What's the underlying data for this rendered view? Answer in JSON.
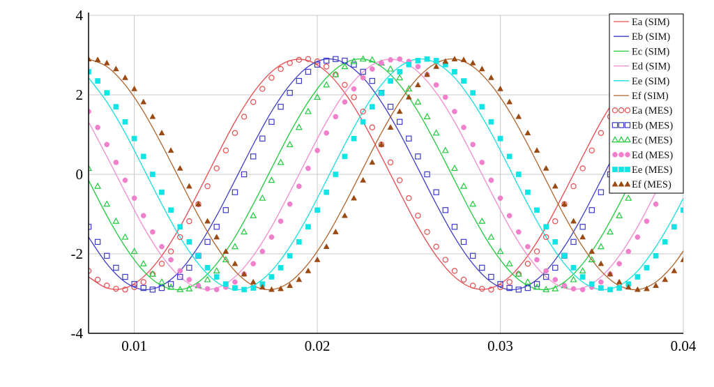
{
  "chart_data": {
    "type": "line",
    "title": "",
    "xlabel": "",
    "ylabel": "",
    "xlim": [
      0.0075,
      0.04
    ],
    "ylim": [
      -4,
      4
    ],
    "grid": true,
    "legend_position": "top-right",
    "xticks": [
      0.01,
      0.02,
      0.03,
      0.04
    ],
    "xtick_labels": [
      "0.01",
      "0.02",
      "0.03",
      "0.04"
    ],
    "yticks": [
      4,
      2,
      0,
      -2,
      -4
    ],
    "ytick_labels": [
      "4",
      "2",
      "0",
      "-2",
      "-4"
    ],
    "x_sim": [
      0.0075,
      0.0085,
      0.0095,
      0.0105,
      0.0115,
      0.0125,
      0.0135,
      0.0145,
      0.0155,
      0.0165,
      0.0175,
      0.0185,
      0.0195,
      0.0205,
      0.0215,
      0.0225,
      0.0235,
      0.0245,
      0.0255,
      0.0265,
      0.0275,
      0.0285,
      0.0295,
      0.0305,
      0.0315,
      0.0325,
      0.0335,
      0.0345,
      0.0355,
      0.0365,
      0.0375,
      0.0385,
      0.0395,
      0.0405
    ],
    "x_mes": [
      0.0075,
      0.008,
      0.0085,
      0.009,
      0.0095,
      0.01,
      0.0105,
      0.011,
      0.0115,
      0.012,
      0.0125,
      0.013,
      0.0135,
      0.014,
      0.0145,
      0.015,
      0.0155,
      0.016,
      0.0165,
      0.017,
      0.0175,
      0.018,
      0.0185,
      0.019,
      0.0195,
      0.02,
      0.0205,
      0.021,
      0.0215,
      0.022,
      0.0225,
      0.023,
      0.0235,
      0.024,
      0.0245,
      0.025,
      0.0255,
      0.026,
      0.0265,
      0.027,
      0.0275,
      0.028,
      0.0285,
      0.029,
      0.0295,
      0.03,
      0.0305,
      0.031,
      0.0315,
      0.032,
      0.0325,
      0.033,
      0.0335,
      0.034,
      0.0345,
      0.035,
      0.0355,
      0.036,
      0.0365,
      0.037,
      0.0375,
      0.038,
      0.0385,
      0.039,
      0.0395,
      0.04
    ],
    "series": [
      {
        "name": "Ea (SIM)",
        "kind": "line",
        "color": "#e84a4e",
        "values": [
          -2.58,
          -2.86,
          -2.86,
          -2.58,
          -2.05,
          -1.32,
          -0.45,
          0.45,
          1.32,
          2.05,
          2.58,
          2.86,
          2.86,
          2.58,
          2.05,
          1.32,
          0.45,
          -0.45,
          -1.32,
          -2.05,
          -2.58,
          -2.86,
          -2.86,
          -2.58,
          -2.05,
          -1.32,
          -0.45,
          0.45,
          1.32,
          2.05,
          2.58,
          2.86,
          2.86,
          2.58
        ]
      },
      {
        "name": "Eb (SIM)",
        "kind": "line",
        "color": "#3b3bc8",
        "values": [
          -1.58,
          -2.25,
          -2.71,
          -2.9,
          -2.8,
          -2.43,
          -1.82,
          -1.04,
          -0.15,
          0.75,
          1.58,
          2.25,
          2.71,
          2.9,
          2.8,
          2.43,
          1.82,
          1.04,
          0.15,
          -0.75,
          -1.58,
          -2.25,
          -2.71,
          -2.9,
          -2.8,
          -2.43,
          -1.82,
          -1.04,
          -0.15,
          0.75,
          1.58,
          2.25,
          2.71,
          2.9
        ]
      },
      {
        "name": "Ec (SIM)",
        "kind": "line",
        "color": "#1fca3c",
        "values": [
          -0.15,
          -1.04,
          -1.82,
          -2.43,
          -2.8,
          -2.9,
          -2.71,
          -2.25,
          -1.58,
          -0.75,
          0.15,
          1.04,
          1.82,
          2.43,
          2.8,
          2.9,
          2.71,
          2.25,
          1.58,
          0.75,
          -0.15,
          -1.04,
          -1.82,
          -2.43,
          -2.8,
          -2.9,
          -2.71,
          -2.25,
          -1.58,
          -0.75,
          0.15,
          1.04,
          1.82,
          2.43
        ]
      },
      {
        "name": "Ed (SIM)",
        "kind": "line",
        "color": "#f08cd0",
        "values": [
          1.32,
          0.45,
          -0.45,
          -1.32,
          -2.05,
          -2.58,
          -2.86,
          -2.86,
          -2.58,
          -2.05,
          -1.32,
          -0.45,
          0.45,
          1.32,
          2.05,
          2.58,
          2.86,
          2.86,
          2.58,
          2.05,
          1.32,
          0.45,
          -0.45,
          -1.32,
          -2.05,
          -2.58,
          -2.86,
          -2.86,
          -2.58,
          -2.05,
          -1.32,
          -0.45,
          0.45,
          1.32
        ]
      },
      {
        "name": "Ee (SIM)",
        "kind": "line",
        "color": "#16dede",
        "values": [
          2.43,
          1.82,
          1.04,
          0.15,
          -0.75,
          -1.58,
          -2.25,
          -2.71,
          -2.9,
          -2.8,
          -2.43,
          -1.82,
          -1.04,
          -0.15,
          0.75,
          1.58,
          2.25,
          2.71,
          2.9,
          2.8,
          2.43,
          1.82,
          1.04,
          0.15,
          -0.75,
          -1.58,
          -2.25,
          -2.71,
          -2.9,
          -2.8,
          -2.43,
          -1.82,
          -1.04,
          -0.15
        ]
      },
      {
        "name": "Ef (SIM)",
        "kind": "line",
        "color": "#b0622a",
        "values": [
          2.9,
          2.71,
          2.25,
          1.58,
          0.75,
          -0.15,
          -1.04,
          -1.82,
          -2.43,
          -2.8,
          -2.9,
          -2.71,
          -2.25,
          -1.58,
          -0.75,
          0.15,
          1.04,
          1.82,
          2.43,
          2.8,
          2.9,
          2.71,
          2.25,
          1.58,
          0.75,
          -0.15,
          -1.04,
          -1.82,
          -2.43,
          -2.8,
          -2.9,
          -2.71,
          -2.25,
          -1.58
        ]
      },
      {
        "name": "Ea (MES)",
        "kind": "marker",
        "marker": "circle-open",
        "color": "#e84a4e",
        "values": [
          -2.43,
          -2.65,
          -2.8,
          -2.88,
          -2.9,
          -2.84,
          -2.71,
          -2.51,
          -2.25,
          -1.94,
          -1.58,
          -1.18,
          -0.75,
          -0.3,
          0.15,
          0.6,
          1.04,
          1.45,
          1.82,
          2.15,
          2.43,
          2.65,
          2.8,
          2.88,
          2.9,
          2.84,
          2.71,
          2.51,
          2.25,
          1.94,
          1.58,
          1.18,
          0.75,
          0.3,
          -0.15,
          -0.6,
          -1.04,
          -1.45,
          -1.82,
          -2.15,
          -2.43,
          -2.65,
          -2.8,
          -2.88,
          -2.9,
          -2.84,
          -2.71,
          -2.51,
          -2.25,
          -1.94,
          -1.58,
          -1.18,
          -0.75,
          -0.3,
          0.15,
          0.6,
          1.04,
          1.45,
          1.82,
          2.15,
          2.43,
          2.65,
          2.8,
          2.88,
          2.9,
          2.84
        ]
      },
      {
        "name": "Eb (MES)",
        "kind": "marker",
        "marker": "square-open",
        "color": "#3b3bc8",
        "values": [
          -1.32,
          -1.7,
          -2.05,
          -2.35,
          -2.58,
          -2.76,
          -2.86,
          -2.9,
          -2.86,
          -2.76,
          -2.58,
          -2.35,
          -2.05,
          -1.7,
          -1.32,
          -0.9,
          -0.45,
          0.0,
          0.45,
          0.9,
          1.32,
          1.7,
          2.05,
          2.35,
          2.58,
          2.76,
          2.86,
          2.9,
          2.86,
          2.76,
          2.58,
          2.35,
          2.05,
          1.7,
          1.32,
          0.9,
          0.45,
          0.0,
          -0.45,
          -0.9,
          -1.32,
          -1.7,
          -2.05,
          -2.35,
          -2.58,
          -2.76,
          -2.86,
          -2.9,
          -2.86,
          -2.76,
          -2.58,
          -2.35,
          -2.05,
          -1.7,
          -1.32,
          -0.9,
          -0.45,
          0.0,
          0.45,
          0.9,
          1.32,
          1.7,
          2.05,
          2.35,
          2.58,
          2.76
        ]
      },
      {
        "name": "Ec (MES)",
        "kind": "marker",
        "marker": "triangle-open",
        "color": "#1fca3c",
        "values": [
          0.15,
          -0.3,
          -0.75,
          -1.18,
          -1.58,
          -1.94,
          -2.25,
          -2.51,
          -2.71,
          -2.84,
          -2.9,
          -2.88,
          -2.8,
          -2.65,
          -2.43,
          -2.15,
          -1.82,
          -1.45,
          -1.04,
          -0.6,
          -0.15,
          0.3,
          0.75,
          1.18,
          1.58,
          1.94,
          2.25,
          2.51,
          2.71,
          2.84,
          2.9,
          2.88,
          2.8,
          2.65,
          2.43,
          2.15,
          1.82,
          1.45,
          1.04,
          0.6,
          0.15,
          -0.3,
          -0.75,
          -1.18,
          -1.58,
          -1.94,
          -2.25,
          -2.51,
          -2.71,
          -2.84,
          -2.9,
          -2.88,
          -2.8,
          -2.65,
          -2.43,
          -2.15,
          -1.82,
          -1.45,
          -1.04,
          -0.6,
          -0.15,
          0.3,
          0.75,
          1.18,
          1.58,
          1.94
        ]
      },
      {
        "name": "Ed (MES)",
        "kind": "marker",
        "marker": "circle-filled",
        "color": "#f080cc",
        "values": [
          1.58,
          1.18,
          0.75,
          0.3,
          -0.15,
          -0.6,
          -1.04,
          -1.45,
          -1.82,
          -2.15,
          -2.43,
          -2.65,
          -2.8,
          -2.88,
          -2.9,
          -2.84,
          -2.71,
          -2.51,
          -2.25,
          -1.94,
          -1.58,
          -1.18,
          -0.75,
          -0.3,
          0.15,
          0.6,
          1.04,
          1.45,
          1.82,
          2.15,
          2.43,
          2.65,
          2.8,
          2.88,
          2.9,
          2.84,
          2.71,
          2.51,
          2.25,
          1.94,
          1.58,
          1.18,
          0.75,
          0.3,
          -0.15,
          -0.6,
          -1.04,
          -1.45,
          -1.82,
          -2.15,
          -2.43,
          -2.65,
          -2.8,
          -2.88,
          -2.9,
          -2.84,
          -2.71,
          -2.51,
          -2.25,
          -1.94,
          -1.58,
          -1.18,
          -0.75,
          -0.3,
          0.15,
          0.6
        ]
      },
      {
        "name": "Ee (MES)",
        "kind": "marker",
        "marker": "square-filled",
        "color": "#10e4e4",
        "values": [
          2.58,
          2.35,
          2.05,
          1.7,
          1.32,
          0.9,
          0.45,
          0.0,
          -0.45,
          -0.9,
          -1.32,
          -1.7,
          -2.05,
          -2.35,
          -2.58,
          -2.76,
          -2.86,
          -2.9,
          -2.86,
          -2.76,
          -2.58,
          -2.35,
          -2.05,
          -1.7,
          -1.32,
          -0.9,
          -0.45,
          0.0,
          0.45,
          0.9,
          1.32,
          1.7,
          2.05,
          2.35,
          2.58,
          2.76,
          2.86,
          2.9,
          2.86,
          2.76,
          2.58,
          2.35,
          2.05,
          1.7,
          1.32,
          0.9,
          0.45,
          0.0,
          -0.45,
          -0.9,
          -1.32,
          -1.7,
          -2.05,
          -2.35,
          -2.58,
          -2.76,
          -2.86,
          -2.9,
          -2.86,
          -2.76,
          -2.58,
          -2.35,
          -2.05,
          -1.7,
          -1.32,
          -0.9
        ]
      },
      {
        "name": "Ef (MES)",
        "kind": "marker",
        "marker": "triangle-filled",
        "color": "#9a4a12",
        "values": [
          2.9,
          2.88,
          2.8,
          2.65,
          2.43,
          2.15,
          1.82,
          1.45,
          1.04,
          0.6,
          0.15,
          -0.3,
          -0.75,
          -1.18,
          -1.58,
          -1.94,
          -2.25,
          -2.51,
          -2.71,
          -2.84,
          -2.9,
          -2.88,
          -2.8,
          -2.65,
          -2.43,
          -2.15,
          -1.82,
          -1.45,
          -1.04,
          -0.6,
          -0.15,
          0.3,
          0.75,
          1.18,
          1.58,
          1.94,
          2.25,
          2.51,
          2.71,
          2.84,
          2.9,
          2.88,
          2.8,
          2.65,
          2.43,
          2.15,
          1.82,
          1.45,
          1.04,
          0.6,
          0.15,
          -0.3,
          -0.75,
          -1.18,
          -1.58,
          -1.94,
          -2.25,
          -2.51,
          -2.71,
          -2.84,
          -2.9,
          -2.88,
          -2.8,
          -2.65,
          -2.43,
          -2.15
        ]
      }
    ]
  }
}
